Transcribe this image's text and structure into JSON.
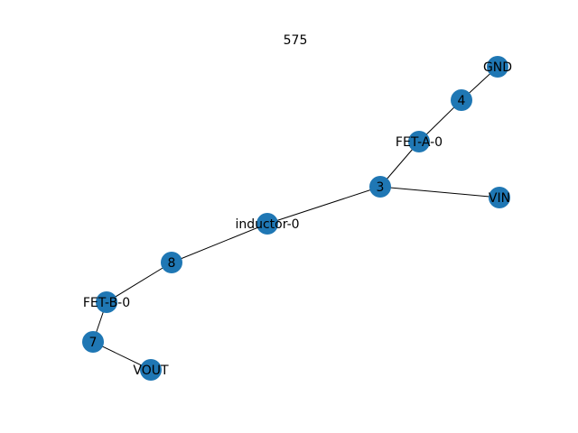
{
  "title": "575",
  "node_color": "#1f77b4",
  "nodes": [
    {
      "id": "GND",
      "label": "GND"
    },
    {
      "id": "4",
      "label": "4"
    },
    {
      "id": "FET-A-0",
      "label": "FET-A-0"
    },
    {
      "id": "3",
      "label": "3"
    },
    {
      "id": "VIN",
      "label": "VIN"
    },
    {
      "id": "inductor-0",
      "label": "inductor-0"
    },
    {
      "id": "8",
      "label": "8"
    },
    {
      "id": "FET-B-0",
      "label": "FET-B-0"
    },
    {
      "id": "7",
      "label": "7"
    },
    {
      "id": "VOUT",
      "label": "VOUT"
    }
  ],
  "edges": [
    [
      "GND",
      "4"
    ],
    [
      "4",
      "FET-A-0"
    ],
    [
      "FET-A-0",
      "3"
    ],
    [
      "3",
      "VIN"
    ],
    [
      "3",
      "inductor-0"
    ],
    [
      "inductor-0",
      "8"
    ],
    [
      "8",
      "FET-B-0"
    ],
    [
      "FET-B-0",
      "7"
    ],
    [
      "7",
      "VOUT"
    ]
  ]
}
